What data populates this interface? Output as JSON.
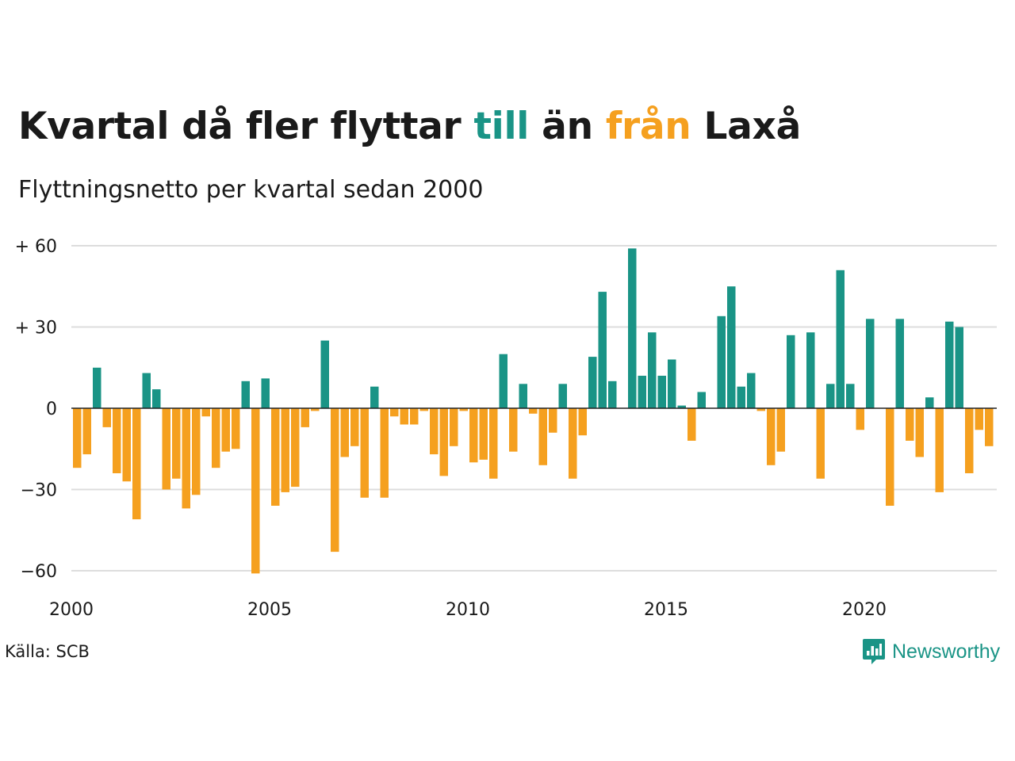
{
  "title": {
    "part1": "Kvartal då fler flyttar ",
    "till": "till",
    "part2": " än ",
    "fran": "från",
    "part3": " Laxå"
  },
  "subtitle": "Flyttningsnetto per kvartal sedan 2000",
  "source": "Källa: SCB",
  "brand": {
    "name": "Newsworthy",
    "icon": "newsworthy-logo-icon"
  },
  "colors": {
    "positive": "#1a9486",
    "negative": "#f5a01f",
    "grid": "#dddddd",
    "zero_line": "#222222"
  },
  "chart_data": {
    "type": "bar",
    "title": "Kvartal då fler flyttar till än från Laxå",
    "subtitle": "Flyttningsnetto per kvartal sedan 2000",
    "xlabel": "",
    "ylabel": "",
    "x_start": "2000-Q1",
    "x_ticks": [
      "2000",
      "2005",
      "2010",
      "2015",
      "2020"
    ],
    "y_ticks": [
      60,
      30,
      0,
      -30,
      -60
    ],
    "y_tick_labels": [
      "+ 60",
      "+ 30",
      "0",
      "−30",
      "−60"
    ],
    "ylim": [
      -60,
      60
    ],
    "grid": true,
    "values": [
      -22,
      -17,
      15,
      -7,
      -24,
      -27,
      -41,
      13,
      7,
      -30,
      -26,
      -37,
      -32,
      -3,
      -22,
      -16,
      -15,
      10,
      -61,
      11,
      -36,
      -31,
      -29,
      -7,
      -1,
      25,
      -53,
      -18,
      -14,
      -33,
      8,
      -33,
      -3,
      -6,
      -6,
      -1,
      -17,
      -25,
      -14,
      -1,
      -20,
      -19,
      -26,
      20,
      -16,
      9,
      -2,
      -21,
      -9,
      9,
      -26,
      -10,
      19,
      43,
      10,
      0,
      59,
      12,
      28,
      12,
      18,
      1,
      -12,
      6,
      0,
      34,
      45,
      8,
      13,
      -1,
      -21,
      -16,
      27,
      0,
      28,
      -26,
      9,
      51,
      9,
      -8,
      33,
      0,
      -36,
      33,
      -12,
      -18,
      4,
      -31,
      32,
      30,
      -24,
      -8,
      -14
    ]
  }
}
